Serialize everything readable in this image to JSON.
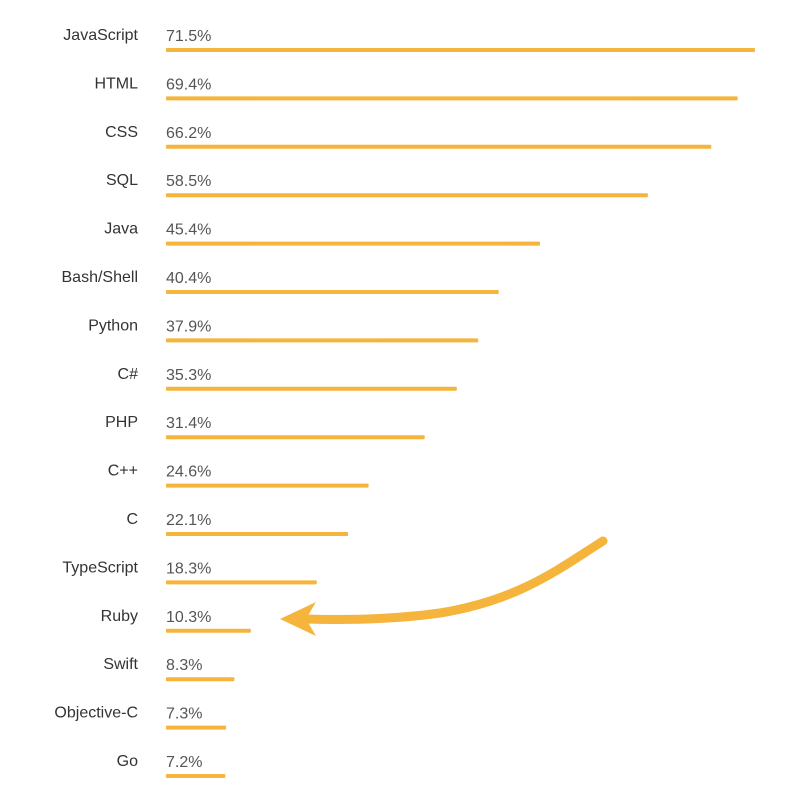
{
  "chart_data": {
    "type": "bar",
    "orientation": "horizontal",
    "categories": [
      "JavaScript",
      "HTML",
      "CSS",
      "SQL",
      "Java",
      "Bash/Shell",
      "Python",
      "C#",
      "PHP",
      "C++",
      "C",
      "TypeScript",
      "Ruby",
      "Swift",
      "Objective-C",
      "Go"
    ],
    "values": [
      71.5,
      69.4,
      66.2,
      58.5,
      45.4,
      40.4,
      37.9,
      35.3,
      31.4,
      24.6,
      22.1,
      18.3,
      10.3,
      8.3,
      7.3,
      7.2
    ],
    "value_labels": [
      "71.5%",
      "69.4%",
      "66.2%",
      "58.5%",
      "45.4%",
      "40.4%",
      "37.9%",
      "35.3%",
      "31.4%",
      "24.6%",
      "22.1%",
      "18.3%",
      "10.3%",
      "8.3%",
      "7.3%",
      "7.2%"
    ],
    "unit": "%",
    "title": "",
    "xlabel": "",
    "ylabel": "",
    "xlim": [
      0,
      71.5
    ],
    "grid": false,
    "legend": "none",
    "bar_color": "#F5B43B",
    "annotation": {
      "type": "arrow",
      "color": "#F5B43B",
      "points_to": "Ruby"
    }
  }
}
